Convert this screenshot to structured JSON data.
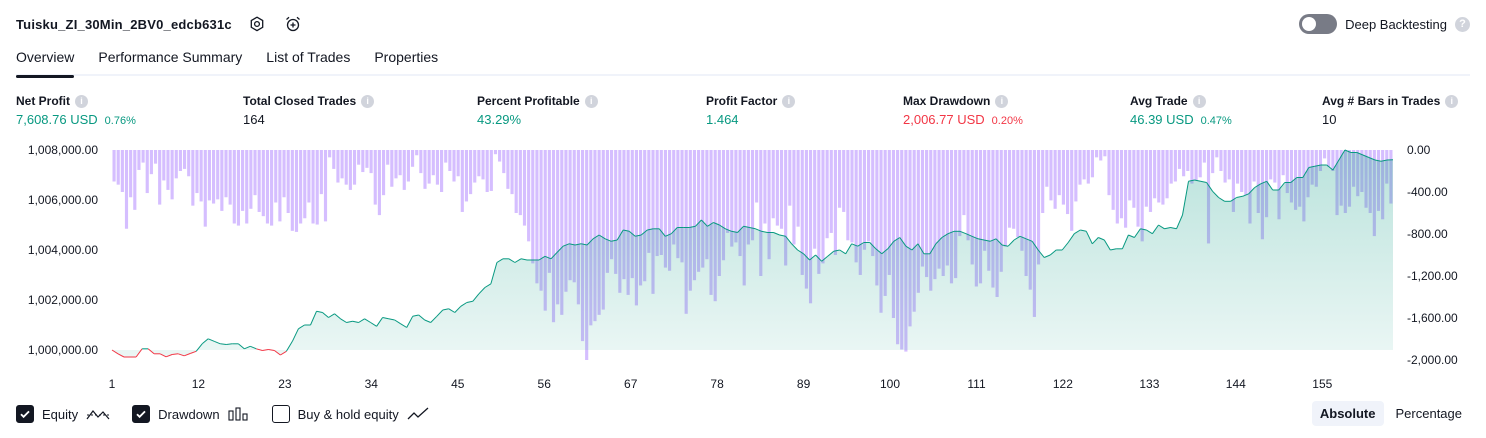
{
  "header": {
    "strategy_name": "Tuisku_ZI_30Min_2BV0_edcb631c",
    "deep_backtesting_label": "Deep Backtesting",
    "deep_backtesting_on": false
  },
  "tabs": [
    {
      "label": "Overview",
      "active": true
    },
    {
      "label": "Performance Summary",
      "active": false
    },
    {
      "label": "List of Trades",
      "active": false
    },
    {
      "label": "Properties",
      "active": false
    }
  ],
  "metrics": [
    {
      "label": "Net Profit",
      "value": "7,608.76 USD",
      "pct": "0.76%",
      "color": "#089981"
    },
    {
      "label": "Total Closed Trades",
      "value": "164",
      "pct": "",
      "color": "#131722"
    },
    {
      "label": "Percent Profitable",
      "value": "43.29%",
      "pct": "",
      "color": "#089981"
    },
    {
      "label": "Profit Factor",
      "value": "1.464",
      "pct": "",
      "color": "#089981"
    },
    {
      "label": "Max Drawdown",
      "value": "2,006.77 USD",
      "pct": "0.20%",
      "color": "#f23645"
    },
    {
      "label": "Avg Trade",
      "value": "46.39 USD",
      "pct": "0.47%",
      "color": "#089981"
    },
    {
      "label": "Avg # Bars in Trades",
      "value": "10",
      "pct": "",
      "color": "#131722"
    }
  ],
  "chart_data": {
    "type": "area",
    "x_ticks": [
      1,
      12,
      23,
      34,
      45,
      56,
      67,
      78,
      89,
      100,
      111,
      122,
      133,
      144,
      155
    ],
    "x_range": [
      1,
      164
    ],
    "left_axis": {
      "ticks": [
        "1,008,000.00",
        "1,006,000.00",
        "1,004,000.00",
        "1,002,000.00",
        "1,000,000.00"
      ],
      "range": [
        1000000,
        1008000
      ]
    },
    "right_axis": {
      "ticks": [
        "0.00",
        "-400.00",
        "-800.00",
        "-1,200.00",
        "-1,600.00",
        "-2,000.00"
      ],
      "range": [
        -2000,
        0
      ]
    },
    "series": [
      {
        "name": "Equity",
        "kind": "area-line",
        "color_up": "#089981",
        "color_down": "#f23645",
        "start": 1000000,
        "values": [
          1000000,
          999850,
          999720,
          999720,
          999720,
          1000050,
          1000050,
          999850,
          999850,
          999730,
          999820,
          999850,
          999770,
          999860,
          999950,
          1000250,
          1000450,
          1000350,
          1000250,
          1000220,
          1000250,
          1000250,
          1000050,
          1000150,
          1000050,
          999980,
          1000020,
          999980,
          999800,
          999950,
          1000350,
          1000850,
          1001000,
          1001000,
          1001550,
          1001500,
          1001300,
          1001450,
          1001250,
          1001100,
          1001150,
          1001100,
          1001250,
          1001100,
          1000950,
          1001300,
          1001250,
          1001200,
          1001050,
          1000900,
          1001350,
          1001400,
          1001200,
          1001100,
          1001350,
          1001600,
          1001650,
          1001500,
          1001750,
          1001900,
          1001950,
          1002250,
          1002500,
          1002650,
          1003500,
          1003650,
          1003650,
          1003500,
          1003650,
          1003600,
          1003600,
          1003600,
          1003750,
          1003650,
          1003900,
          1004150,
          1004250,
          1004200,
          1004250,
          1004200,
          1004450,
          1004600,
          1004450,
          1004350,
          1004400,
          1004800,
          1004750,
          1004550,
          1004600,
          1004800,
          1004850,
          1004850,
          1004550,
          1004650,
          1004900,
          1004900,
          1004900,
          1004950,
          1005200,
          1004950,
          1005100,
          1005000,
          1004850,
          1004750,
          1004700,
          1004950,
          1004900,
          1004850,
          1004750,
          1004700,
          1004700,
          1004600,
          1004550,
          1004250,
          1004000,
          1003850,
          1003600,
          1003800,
          1003550,
          1003750,
          1003950,
          1004000,
          1003850,
          1004250,
          1004150,
          1004300,
          1004300,
          1004050,
          1003850,
          1004050,
          1004350,
          1004500,
          1004150,
          1004000,
          1004250,
          1003850,
          1003850,
          1004250,
          1004500,
          1004650,
          1004750,
          1004750,
          1004650,
          1004550,
          1004450,
          1004400,
          1004350,
          1004450,
          1004200,
          1004150,
          1004400,
          1004550,
          1004450,
          1004350,
          1004000,
          1003700,
          1003800,
          1004000,
          1004000,
          1004300,
          1004650,
          1004800,
          1004750,
          1004250,
          1004500,
          1004400,
          1004000,
          1004050,
          1004050,
          1004600,
          1004500,
          1004850,
          1004800,
          1004650,
          1005000,
          1004850,
          1004900,
          1004850,
          1005400,
          1006750,
          1006800,
          1006750,
          1006700,
          1006350,
          1006100,
          1005950,
          1005950,
          1006100,
          1006150,
          1006250,
          1006500,
          1006650,
          1006750,
          1006400,
          1006400,
          1006700,
          1006700,
          1006900,
          1006900,
          1007300,
          1007350,
          1007400,
          1007400,
          1007200,
          1007600,
          1008000,
          1007900,
          1007900,
          1007800,
          1007700,
          1007600,
          1007550,
          1007600,
          1007609
        ]
      },
      {
        "name": "Drawdown",
        "kind": "bars",
        "color": "#b388ff",
        "values": [
          -300,
          -330,
          -400,
          -750,
          -450,
          -570,
          -190,
          -120,
          -410,
          -230,
          -130,
          -520,
          -290,
          -380,
          -470,
          -270,
          -200,
          -180,
          -250,
          -530,
          -410,
          -490,
          -730,
          -480,
          -510,
          -470,
          -580,
          -450,
          -520,
          -700,
          -720,
          -580,
          -700,
          -560,
          -430,
          -590,
          -630,
          -700,
          -720,
          -500,
          -680,
          -450,
          -600,
          -770,
          -780,
          -700,
          -650,
          -500,
          -700,
          -710,
          -420,
          -680,
          -70,
          -180,
          -310,
          -270,
          -330,
          -380,
          -330,
          -140,
          -210,
          -170,
          -220,
          -520,
          -620,
          -430,
          -140,
          -350,
          -270,
          -240,
          -380,
          -300,
          -160,
          -50,
          -220,
          -370,
          -320,
          -240,
          -330,
          -400,
          -120,
          -200,
          -300,
          -250,
          -590,
          -490,
          -420,
          -310,
          -250,
          -280,
          -400,
          -390,
          -40,
          -110,
          -220,
          -370,
          -420,
          -600,
          -620,
          -720,
          -870,
          -1080,
          -1270,
          -1340,
          -1530,
          -1170,
          -1640,
          -1470,
          -1570,
          -1350,
          -1240,
          -1260,
          -1470,
          -1820,
          -2000,
          -1670,
          -1630,
          -1570,
          -1520,
          -1170,
          -1040,
          -1180,
          -1360,
          -1230,
          -1380,
          -1220,
          -1480,
          -1290,
          -1250,
          -980,
          -1370,
          -1010,
          -1000,
          -1120,
          -1150,
          -900,
          -1030,
          -1070,
          -1560,
          -1340,
          -1240,
          -1160,
          -1120,
          -1040,
          -1380,
          -1440,
          -1200,
          -1050,
          -790,
          -920,
          -880,
          -1010,
          -1290,
          -900,
          -860,
          -500,
          -1200,
          -700,
          -1040,
          -650,
          -720,
          -750,
          -1100,
          -530,
          -900,
          -730,
          -1190,
          -1320,
          -1460,
          -940,
          -1180,
          -1080,
          -840,
          -790,
          -1000,
          -550,
          -590,
          -860,
          -880,
          -1070,
          -1190,
          -950,
          -870,
          -1010,
          -1290,
          -1550,
          -1390,
          -1190,
          -1600,
          -1850,
          -1900,
          -1920,
          -1680,
          -1540,
          -1360,
          -1110,
          -1210,
          -1340,
          -1230,
          -1130,
          -1200,
          -1100,
          -1270,
          -1220,
          -820,
          -620,
          -860,
          -1090,
          -1300,
          -1270,
          -960,
          -1150,
          -1310,
          -1400,
          -1160,
          -920,
          -740,
          -750,
          -830,
          -960,
          -1200,
          -1330,
          -1590,
          -1090,
          -600,
          -350,
          -480,
          -560,
          -430,
          -520,
          -610,
          -770,
          -490,
          -330,
          -280,
          -320,
          -260,
          -70,
          -100,
          -60,
          -430,
          -570,
          -700,
          -650,
          -740,
          -480,
          -550,
          -730,
          -870,
          -540,
          -590,
          -460,
          -500,
          -520,
          -460,
          -320,
          -300,
          -180,
          -250,
          -200,
          -320,
          -290,
          -260,
          -120,
          -890,
          -220,
          -70,
          -200,
          -310,
          -280,
          -590,
          -320,
          -400,
          -430,
          -700,
          -300,
          -600,
          -850,
          -640,
          -280,
          -310,
          -660,
          -240,
          -410,
          -500,
          -570,
          -540,
          -680,
          -450,
          -330,
          -350,
          -200,
          -80,
          -160,
          -200,
          -620,
          -530,
          -600,
          -540,
          -350,
          -440,
          -400,
          -550,
          -600,
          -820,
          -580,
          -660,
          -320,
          -510
        ]
      }
    ],
    "legend": [
      {
        "name": "Equity",
        "checked": true
      },
      {
        "name": "Drawdown",
        "checked": true
      },
      {
        "name": "Buy & hold equity",
        "checked": false
      }
    ]
  },
  "modes": [
    {
      "label": "Absolute",
      "active": true
    },
    {
      "label": "Percentage",
      "active": false
    }
  ],
  "colors": {
    "accent": "#131722",
    "profit": "#089981",
    "loss": "#f23645",
    "drawdown": "#b388ff"
  }
}
